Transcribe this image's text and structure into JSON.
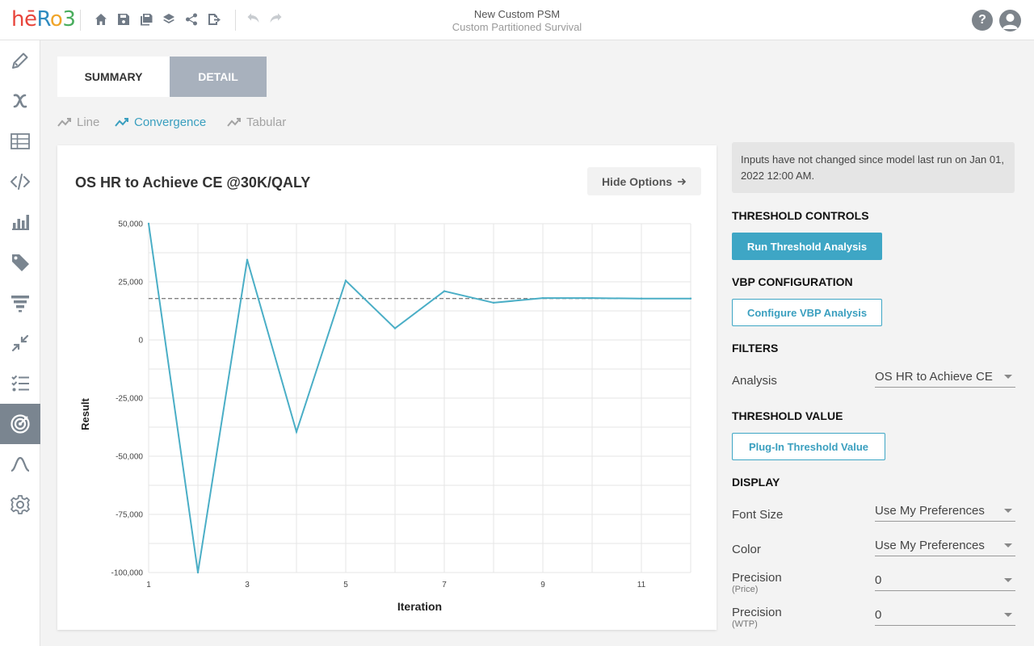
{
  "app": {
    "logo": [
      "hē",
      "R",
      "o",
      "3"
    ],
    "title": "New Custom PSM",
    "subtitle": "Custom Partitioned Survival",
    "help_label": "?"
  },
  "toolbar": {
    "icons": [
      "home-icon",
      "save-icon",
      "save-as-icon",
      "layers-icon",
      "share-icon",
      "export-icon",
      "undo-icon",
      "redo-icon"
    ]
  },
  "sidebar": {
    "items": [
      "pencil-icon",
      "variable-x-icon",
      "table-icon",
      "code-icon",
      "bar-chart-icon",
      "tag-icon",
      "filter-icon",
      "compress-icon",
      "checklist-icon",
      "target-icon",
      "curve-icon",
      "gear-icon"
    ],
    "active_index": 9
  },
  "tabs": {
    "summary": "SUMMARY",
    "detail": "DETAIL"
  },
  "view_tabs": {
    "line": "Line",
    "convergence": "Convergence",
    "tabular": "Tabular"
  },
  "card": {
    "title": "OS HR to Achieve CE @30K/QALY",
    "hide_options": "Hide Options"
  },
  "chart_data": {
    "type": "line",
    "title": "OS HR to Achieve CE @30K/QALY",
    "xlabel": "Iteration",
    "ylabel": "Result",
    "x": [
      1,
      2,
      3,
      4,
      5,
      6,
      7,
      8,
      9,
      10,
      11,
      12
    ],
    "series": [
      {
        "values": [
          50000,
          -100000,
          34500,
          -39500,
          25500,
          5000,
          21000,
          16000,
          18000,
          18000,
          17800,
          17800
        ]
      }
    ],
    "reference_line": 17800,
    "xlim": [
      1,
      12
    ],
    "ylim": [
      -100000,
      50000
    ],
    "x_ticks": [
      "1",
      "3",
      "5",
      "7",
      "9",
      "11"
    ],
    "y_ticks": [
      "50,000",
      "25,000",
      "0",
      "-25,000",
      "-50,000",
      "-75,000",
      "-100,000"
    ],
    "grid": true,
    "line_color": "#4aaec6"
  },
  "panel": {
    "info": "Inputs have not changed since model last run on Jan 01, 2022 12:00 AM.",
    "threshold_controls": "THRESHOLD CONTROLS",
    "run_threshold": "Run Threshold Analysis",
    "vbp_configuration": "VBP CONFIGURATION",
    "configure_vbp": "Configure VBP Analysis",
    "filters": "FILTERS",
    "analysis_label": "Analysis",
    "analysis_value": "OS HR to Achieve CE",
    "threshold_value": "THRESHOLD VALUE",
    "plugin_threshold": "Plug-In Threshold Value",
    "display": "DISPLAY",
    "font_size_label": "Font Size",
    "font_size_value": "Use My Preferences",
    "color_label": "Color",
    "color_value": "Use My Preferences",
    "precision_label": "Precision",
    "precision_price_sub": "(Price)",
    "precision_price_value": "0",
    "precision_wtp_sub": "(WTP)",
    "precision_wtp_value": "0"
  }
}
